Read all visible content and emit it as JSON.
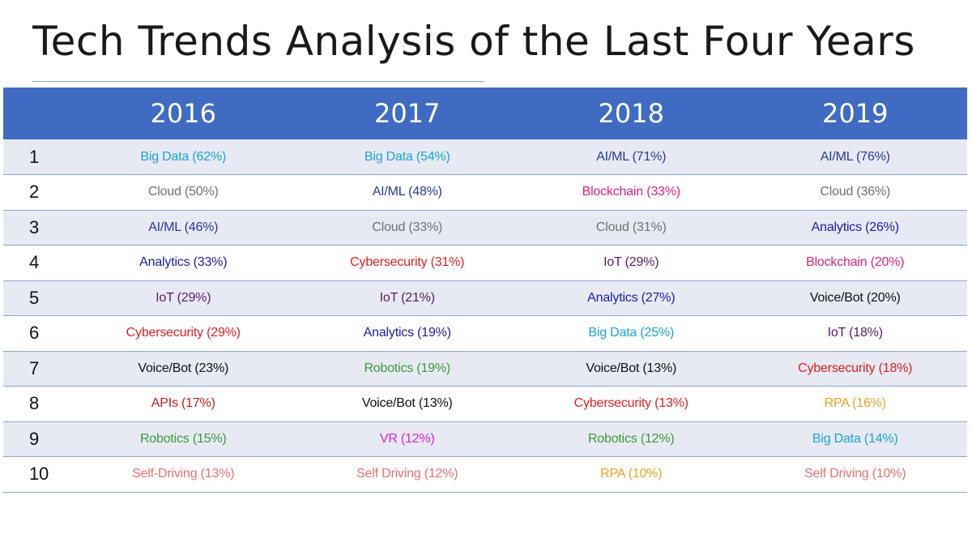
{
  "title": "Tech Trends Analysis of the Last Four Years",
  "years": [
    "2016",
    "2017",
    "2018",
    "2019"
  ],
  "rows": [
    {
      "rank": "1",
      "cells": [
        {
          "text": "Big Data (62%)",
          "color": "#1aa3e0"
        },
        {
          "text": "Big Data (54%)",
          "color": "#1aa3e0"
        },
        {
          "text": "AI/ML (71%)",
          "color": "#2a3a9a"
        },
        {
          "text": "AI/ML (76%)",
          "color": "#2a3a9a"
        }
      ]
    },
    {
      "rank": "2",
      "cells": [
        {
          "text": "Cloud (50%)",
          "color": "#707070"
        },
        {
          "text": "AI/ML (48%)",
          "color": "#2a3a9a"
        },
        {
          "text": "Blockchain (33%)",
          "color": "#e0207a"
        },
        {
          "text": "Cloud (36%)",
          "color": "#707070"
        }
      ]
    },
    {
      "rank": "3",
      "cells": [
        {
          "text": "AI/ML (46%)",
          "color": "#2a3a9a"
        },
        {
          "text": "Cloud (33%)",
          "color": "#707070"
        },
        {
          "text": "Cloud (31%)",
          "color": "#707070"
        },
        {
          "text": "Analytics (26%)",
          "color": "#1c1ca8"
        }
      ]
    },
    {
      "rank": "4",
      "cells": [
        {
          "text": "Analytics (33%)",
          "color": "#1c1ca8"
        },
        {
          "text": "Cybersecurity (31%)",
          "color": "#e02020"
        },
        {
          "text": "IoT (29%)",
          "color": "#5a1a6a"
        },
        {
          "text": "Blockchain (20%)",
          "color": "#e0207a"
        }
      ]
    },
    {
      "rank": "5",
      "cells": [
        {
          "text": "IoT (29%)",
          "color": "#5a1a6a"
        },
        {
          "text": "IoT (21%)",
          "color": "#5a1a6a"
        },
        {
          "text": "Analytics (27%)",
          "color": "#1c1ca8"
        },
        {
          "text": "Voice/Bot (20%)",
          "color": "#111111"
        }
      ]
    },
    {
      "rank": "6",
      "cells": [
        {
          "text": "Cybersecurity (29%)",
          "color": "#e02020"
        },
        {
          "text": "Analytics (19%)",
          "color": "#1c1ca8"
        },
        {
          "text": "Big Data (25%)",
          "color": "#1aa3e0"
        },
        {
          "text": "IoT (18%)",
          "color": "#5a1a6a"
        }
      ]
    },
    {
      "rank": "7",
      "cells": [
        {
          "text": "Voice/Bot (23%)",
          "color": "#111111"
        },
        {
          "text": "Robotics (19%)",
          "color": "#3a9a3a"
        },
        {
          "text": "Voice/Bot (13%)",
          "color": "#111111"
        },
        {
          "text": "Cybersecurity (18%)",
          "color": "#e02020"
        }
      ]
    },
    {
      "rank": "8",
      "cells": [
        {
          "text": "APIs (17%)",
          "color": "#c81a1a"
        },
        {
          "text": "Voice/Bot (13%)",
          "color": "#111111"
        },
        {
          "text": "Cybersecurity (13%)",
          "color": "#e02020"
        },
        {
          "text": "RPA (16%)",
          "color": "#f0a020"
        }
      ]
    },
    {
      "rank": "9",
      "cells": [
        {
          "text": "Robotics (15%)",
          "color": "#3a9a3a"
        },
        {
          "text": "VR (12%)",
          "color": "#e020e0"
        },
        {
          "text": "Robotics (12%)",
          "color": "#3a9a3a"
        },
        {
          "text": "Big Data (14%)",
          "color": "#1aa3e0"
        }
      ]
    },
    {
      "rank": "10",
      "cells": [
        {
          "text": "Self-Driving (13%)",
          "color": "#e87070"
        },
        {
          "text": "Self Driving (12%)",
          "color": "#e87070"
        },
        {
          "text": "RPA (10%)",
          "color": "#f0a020"
        },
        {
          "text": "Self Driving (10%)",
          "color": "#e87070"
        }
      ]
    }
  ],
  "colors": {
    "header_bg": "#3f6cc2",
    "header_text": "#ffffff",
    "row_alt": "#e7eaf3",
    "row_divider": "#8ea4cf"
  }
}
